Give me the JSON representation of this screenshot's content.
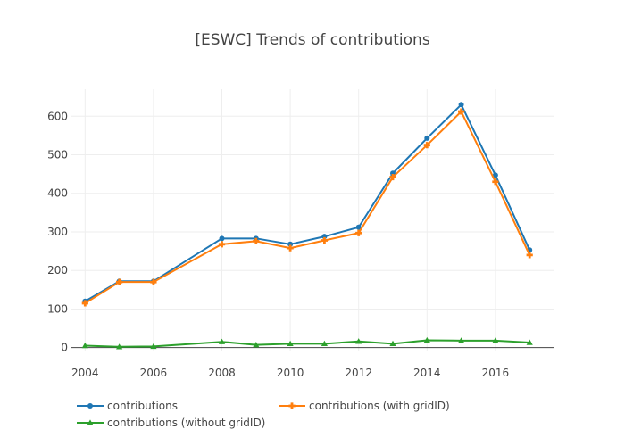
{
  "chart_data": {
    "type": "line",
    "title": "[ESWC] Trends of contributions",
    "xlabel": "",
    "ylabel": "",
    "x": [
      2004,
      2005,
      2006,
      2008,
      2009,
      2010,
      2011,
      2012,
      2013,
      2014,
      2015,
      2016,
      2017
    ],
    "series": [
      {
        "name": "contributions",
        "color": "#1f77b4",
        "marker": "circle",
        "values": [
          120,
          172,
          172,
          283,
          283,
          268,
          288,
          312,
          452,
          543,
          630,
          447,
          253
        ]
      },
      {
        "name": "contributions (with gridID)",
        "color": "#ff7f0e",
        "marker": "cross",
        "values": [
          115,
          170,
          170,
          268,
          276,
          258,
          278,
          297,
          442,
          525,
          612,
          430,
          240
        ]
      },
      {
        "name": "contributions (without gridID)",
        "color": "#2ca02c",
        "marker": "triangle-up",
        "values": [
          5,
          2,
          3,
          15,
          7,
          10,
          10,
          16,
          10,
          19,
          18,
          18,
          13
        ]
      }
    ],
    "xticks": [
      2004,
      2006,
      2008,
      2010,
      2012,
      2014,
      2016
    ],
    "yticks": [
      0,
      100,
      200,
      300,
      400,
      500,
      600
    ],
    "xlim": [
      2003.6,
      2017.7
    ],
    "ylim": [
      -10,
      670
    ],
    "grid": true,
    "legend_position": "bottom-left"
  }
}
